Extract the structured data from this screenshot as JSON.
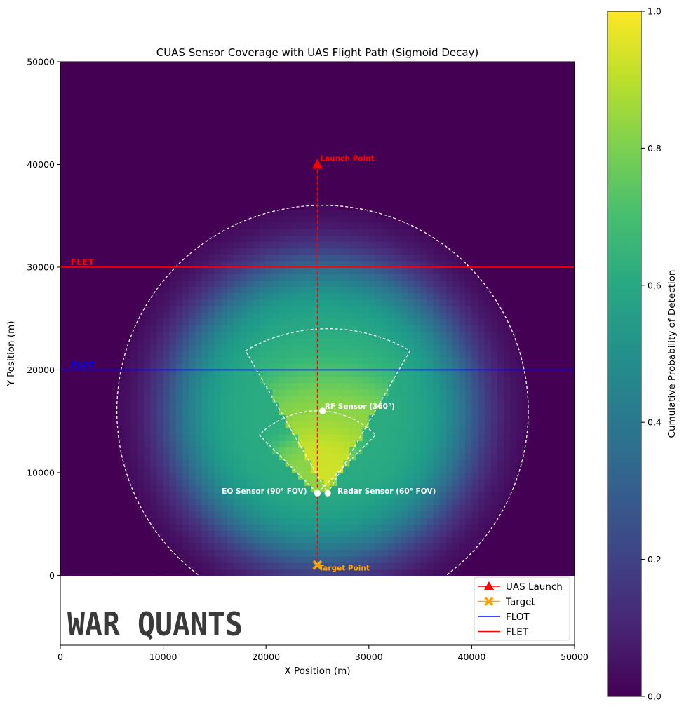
{
  "chart_data": {
    "type": "heatmap",
    "title": "CUAS Sensor Coverage with UAS Flight Path (Sigmoid Decay)",
    "xlabel": "X Position (m)",
    "ylabel": "Y Position (m)",
    "xlim": [
      0,
      50000
    ],
    "ylim": [
      -6800,
      50000
    ],
    "x_ticks": [
      "0",
      "10000",
      "20000",
      "30000",
      "40000",
      "50000"
    ],
    "x_tick_values": [
      0,
      10000,
      20000,
      30000,
      40000,
      50000
    ],
    "y_ticks": [
      "0",
      "10000",
      "20000",
      "30000",
      "40000",
      "50000"
    ],
    "y_tick_values": [
      0,
      10000,
      20000,
      30000,
      40000,
      50000
    ],
    "colorbar": {
      "label": "Cumulative Probability of Detection",
      "ticks": [
        "0.0",
        "0.2",
        "0.4",
        "0.6",
        "0.8",
        "1.0"
      ],
      "tick_values": [
        0,
        0.2,
        0.4,
        0.6,
        0.8,
        1.0
      ],
      "range": [
        0,
        1
      ],
      "colormap": "viridis"
    },
    "sensors": [
      {
        "name": "RF Sensor",
        "label": "RF Sensor (360°)",
        "x": 25500,
        "y": 16000,
        "range": 20000,
        "fov_deg": 360,
        "heading_deg": 90
      },
      {
        "name": "EO Sensor",
        "label": "EO Sensor (90° FOV)",
        "x": 25000,
        "y": 8000,
        "range": 8000,
        "fov_deg": 90,
        "heading_deg": 90
      },
      {
        "name": "Radar Sensor",
        "label": "Radar Sensor (60° FOV)",
        "x": 26000,
        "y": 8000,
        "range": 16000,
        "fov_deg": 60,
        "heading_deg": 90
      }
    ],
    "flight_path": {
      "from": [
        25000,
        40000
      ],
      "to": [
        25000,
        1000
      ]
    },
    "launch_point": {
      "label": "Launch Point",
      "x": 25000,
      "y": 40000
    },
    "target_point": {
      "label": "Target Point",
      "x": 25000,
      "y": 1000
    },
    "flot": {
      "label": "FLOT",
      "y": 20000
    },
    "flet": {
      "label": "FLET",
      "y": 30000
    },
    "legend": {
      "position": "lower-right",
      "items": [
        {
          "label": "UAS Launch",
          "marker": "triangle",
          "color": "#ff0000"
        },
        {
          "label": "Target",
          "marker": "x-cross",
          "color": "#ffa500"
        },
        {
          "label": "FLOT",
          "marker": "line",
          "color": "#0000ff"
        },
        {
          "label": "FLET",
          "marker": "line",
          "color": "#ff0000"
        }
      ]
    },
    "colors": {
      "launch": "#ff0000",
      "target": "#ffa500",
      "flot": "#0000ff",
      "flet": "#ff0000",
      "coverage_outline": "#ffffff"
    }
  },
  "watermark": {
    "text": "WAR QUANTS"
  }
}
